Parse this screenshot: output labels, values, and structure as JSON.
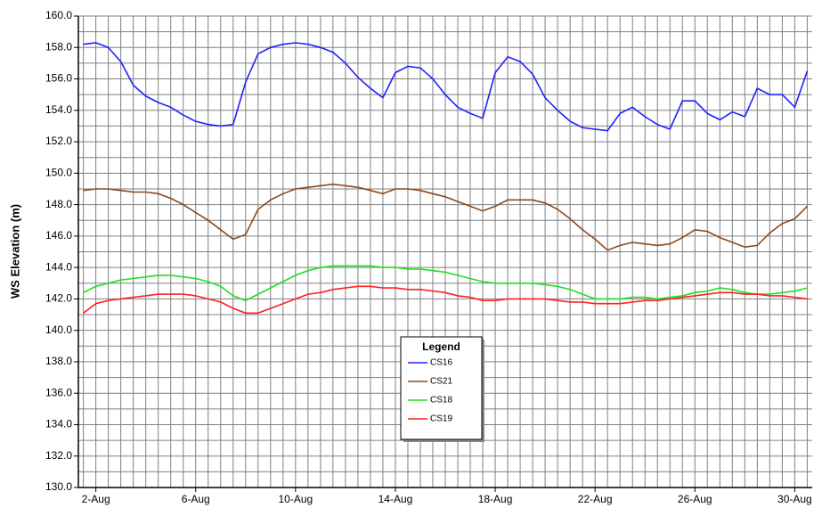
{
  "chart_data": {
    "type": "line",
    "y_label": "WS Elevation (m)",
    "legend_title": "Legend",
    "legend": "center",
    "grid": true,
    "xlim": [
      1.3,
      30.7
    ],
    "ylim": [
      130,
      160
    ],
    "xticks": [
      {
        "value": 2,
        "label": "2-Aug"
      },
      {
        "value": 6,
        "label": "6-Aug"
      },
      {
        "value": 10,
        "label": "10-Aug"
      },
      {
        "value": 14,
        "label": "14-Aug"
      },
      {
        "value": 18,
        "label": "18-Aug"
      },
      {
        "value": 22,
        "label": "22-Aug"
      },
      {
        "value": 26,
        "label": "26-Aug"
      },
      {
        "value": 30,
        "label": "30-Aug"
      }
    ],
    "yticks": [
      {
        "value": 130,
        "label": "130.0"
      },
      {
        "value": 132,
        "label": "132.0"
      },
      {
        "value": 134,
        "label": "134.0"
      },
      {
        "value": 136,
        "label": "136.0"
      },
      {
        "value": 138,
        "label": "138.0"
      },
      {
        "value": 140,
        "label": "140.0"
      },
      {
        "value": 142,
        "label": "142.0"
      },
      {
        "value": 144,
        "label": "144.0"
      },
      {
        "value": 146,
        "label": "146.0"
      },
      {
        "value": 148,
        "label": "148.0"
      },
      {
        "value": 150,
        "label": "150.0"
      },
      {
        "value": 152,
        "label": "152.0"
      },
      {
        "value": 154,
        "label": "154.0"
      },
      {
        "value": 156,
        "label": "156.0"
      },
      {
        "value": 158,
        "label": "158.0"
      },
      {
        "value": 160,
        "label": "160.0"
      }
    ],
    "yminor": [
      131,
      133,
      135,
      137,
      139,
      141,
      143,
      145,
      147,
      149,
      151,
      153,
      155,
      157,
      159
    ],
    "xgrid": [
      1.5,
      2,
      2.5,
      3,
      3.5,
      4,
      4.5,
      5,
      5.5,
      6,
      6.5,
      7,
      7.5,
      8,
      8.5,
      9,
      9.5,
      10,
      10.5,
      11,
      11.5,
      12,
      12.5,
      13,
      13.5,
      14,
      14.5,
      15,
      15.5,
      16,
      16.5,
      17,
      17.5,
      18,
      18.5,
      19,
      19.5,
      20,
      20.5,
      21,
      21.5,
      22,
      22.5,
      23,
      23.5,
      24,
      24.5,
      25,
      25.5,
      26,
      26.5,
      27,
      27.5,
      28,
      28.5,
      29,
      29.5,
      30,
      30.5
    ],
    "x": [
      1.5,
      2,
      2.5,
      3,
      3.5,
      4,
      4.5,
      5,
      5.5,
      6,
      6.5,
      7,
      7.5,
      8,
      8.5,
      9,
      9.5,
      10,
      10.5,
      11,
      11.5,
      12,
      12.5,
      13,
      13.5,
      14,
      14.5,
      15,
      15.5,
      16,
      16.5,
      17,
      17.5,
      18,
      18.5,
      19,
      19.5,
      20,
      20.5,
      21,
      21.5,
      22,
      22.5,
      23,
      23.5,
      24,
      24.5,
      25,
      25.5,
      26,
      26.5,
      27,
      27.5,
      28,
      28.5,
      29,
      29.5,
      30,
      30.5
    ],
    "series": [
      {
        "name": "CS16",
        "color": "#2020ff",
        "values": [
          158.2,
          158.3,
          158.0,
          157.1,
          155.6,
          154.9,
          154.5,
          154.2,
          153.7,
          153.3,
          153.1,
          153.0,
          153.1,
          155.8,
          157.6,
          158.0,
          158.2,
          158.3,
          158.2,
          158.0,
          157.7,
          157.0,
          156.1,
          155.4,
          154.8,
          156.4,
          156.8,
          156.7,
          156.0,
          155.0,
          154.2,
          153.8,
          153.5,
          156.4,
          157.4,
          157.1,
          156.3,
          154.8,
          154.0,
          153.3,
          152.9,
          152.8,
          152.7,
          153.8,
          154.2,
          153.6,
          153.1,
          152.8,
          154.6,
          154.6,
          153.8,
          153.4,
          153.9,
          153.6,
          155.4,
          155.0,
          155.0,
          154.2,
          156.5
        ]
      },
      {
        "name": "CS21",
        "color": "#8b4a1c",
        "values": [
          148.9,
          149.0,
          149.0,
          148.9,
          148.8,
          148.8,
          148.7,
          148.4,
          148.0,
          147.5,
          147.0,
          146.4,
          145.8,
          146.1,
          147.7,
          148.3,
          148.7,
          149.0,
          149.1,
          149.2,
          149.3,
          149.2,
          149.1,
          148.9,
          148.7,
          149.0,
          149.0,
          148.9,
          148.7,
          148.5,
          148.2,
          147.9,
          147.6,
          147.9,
          148.3,
          148.3,
          148.3,
          148.1,
          147.7,
          147.1,
          146.4,
          145.8,
          145.1,
          145.4,
          145.6,
          145.5,
          145.4,
          145.5,
          145.9,
          146.4,
          146.3,
          145.9,
          145.6,
          145.3,
          145.4,
          146.2,
          146.8,
          147.1,
          147.9
        ]
      },
      {
        "name": "CS18",
        "color": "#20e020",
        "values": [
          142.4,
          142.8,
          143.0,
          143.2,
          143.3,
          143.4,
          143.5,
          143.5,
          143.4,
          143.3,
          143.1,
          142.8,
          142.2,
          141.9,
          142.3,
          142.7,
          143.1,
          143.5,
          143.8,
          144.0,
          144.1,
          144.1,
          144.1,
          144.1,
          144.0,
          144.0,
          143.9,
          143.9,
          143.8,
          143.7,
          143.5,
          143.3,
          143.1,
          143.0,
          143.0,
          143.0,
          143.0,
          142.9,
          142.8,
          142.6,
          142.3,
          142.0,
          142.0,
          142.0,
          142.1,
          142.1,
          142.0,
          142.1,
          142.2,
          142.4,
          142.5,
          142.7,
          142.6,
          142.4,
          142.3,
          142.3,
          142.4,
          142.5,
          142.7
        ]
      },
      {
        "name": "CS19",
        "color": "#ff2020",
        "values": [
          141.1,
          141.7,
          141.9,
          142.0,
          142.1,
          142.2,
          142.3,
          142.3,
          142.3,
          142.2,
          142.0,
          141.8,
          141.4,
          141.1,
          141.1,
          141.4,
          141.7,
          142.0,
          142.3,
          142.4,
          142.6,
          142.7,
          142.8,
          142.8,
          142.7,
          142.7,
          142.6,
          142.6,
          142.5,
          142.4,
          142.2,
          142.1,
          141.9,
          141.9,
          142.0,
          142.0,
          142.0,
          142.0,
          141.9,
          141.8,
          141.8,
          141.7,
          141.7,
          141.7,
          141.8,
          141.9,
          141.9,
          142.0,
          142.1,
          142.2,
          142.3,
          142.4,
          142.4,
          142.3,
          142.3,
          142.2,
          142.2,
          142.1,
          142.0
        ]
      }
    ]
  }
}
